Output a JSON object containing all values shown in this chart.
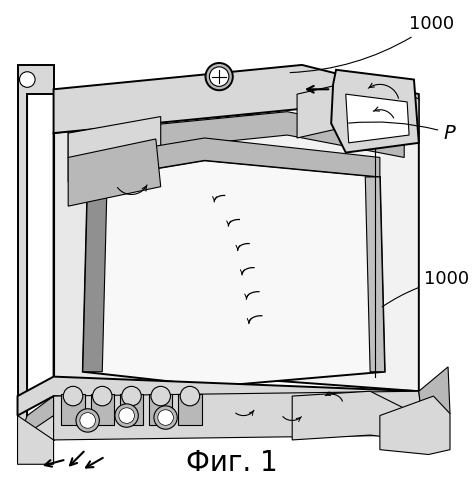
{
  "figure_label": "Фиг. 1",
  "label_1000_top": "1000",
  "label_1000_bottom": "1000",
  "label_P": "P",
  "fig_label_fontsize": 20,
  "annotation_fontsize": 12,
  "bg_color": "#ffffff",
  "line_color": "#000000",
  "figsize": [
    4.76,
    4.99
  ],
  "dpi": 100,
  "lw_main": 1.4,
  "lw_detail": 0.8,
  "gray_light": "#d8d8d8",
  "gray_mid": "#b8b8b8",
  "gray_dark": "#909090",
  "gray_shade": "#c0c0c0"
}
